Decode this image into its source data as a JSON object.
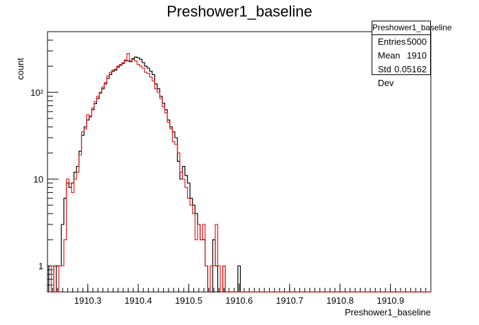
{
  "chart_data": {
    "type": "histogram",
    "title": "Preshower1_baseline",
    "xlabel": "Preshower1_baseline",
    "ylabel": "count",
    "xlim": [
      1910.22,
      1910.98
    ],
    "ylim": [
      0.5,
      500
    ],
    "yscale": "log",
    "grid": false,
    "x_ticks": [
      "1910.3",
      "1910.4",
      "1910.5",
      "1910.6",
      "1910.7",
      "1910.8",
      "1910.9"
    ],
    "x_tick_values": [
      1910.3,
      1910.4,
      1910.5,
      1910.6,
      1910.7,
      1910.8,
      1910.9
    ],
    "y_ticks": [
      "1",
      "10",
      "10²"
    ],
    "y_tick_values": [
      1,
      10,
      100
    ],
    "bin_width": 0.005,
    "series": [
      {
        "color": "#000000",
        "x": [
          1910.225,
          1910.23,
          1910.235,
          1910.24,
          1910.245,
          1910.25,
          1910.255,
          1910.26,
          1910.265,
          1910.27,
          1910.275,
          1910.28,
          1910.285,
          1910.29,
          1910.295,
          1910.3,
          1910.305,
          1910.31,
          1910.315,
          1910.32,
          1910.325,
          1910.33,
          1910.335,
          1910.34,
          1910.345,
          1910.35,
          1910.355,
          1910.36,
          1910.365,
          1910.37,
          1910.375,
          1910.38,
          1910.385,
          1910.39,
          1910.395,
          1910.4,
          1910.405,
          1910.41,
          1910.415,
          1910.42,
          1910.425,
          1910.43,
          1910.435,
          1910.44,
          1910.445,
          1910.45,
          1910.455,
          1910.46,
          1910.465,
          1910.47,
          1910.475,
          1910.48,
          1910.485,
          1910.49,
          1910.495,
          1910.5,
          1910.505,
          1910.51,
          1910.515,
          1910.52,
          1910.525,
          1910.53,
          1910.535,
          1910.54,
          1910.545,
          1910.55,
          1910.555,
          1910.56,
          1910.565,
          1910.57,
          1910.575,
          1910.58,
          1910.585,
          1910.59,
          1910.595,
          1910.6,
          1910.605
        ],
        "values": [
          1,
          1,
          0,
          1,
          1,
          3,
          6,
          9,
          8,
          9,
          12,
          14,
          21,
          32,
          40,
          48,
          53,
          63,
          74,
          85,
          98,
          110,
          125,
          145,
          160,
          175,
          180,
          195,
          205,
          215,
          235,
          230,
          225,
          245,
          255,
          250,
          240,
          220,
          200,
          190,
          175,
          160,
          125,
          110,
          90,
          75,
          63,
          48,
          40,
          35,
          30,
          16,
          10,
          14,
          11,
          9,
          6,
          5,
          4,
          3,
          2,
          2,
          1,
          0,
          0,
          2,
          1,
          0,
          0,
          1,
          0,
          0,
          0,
          0,
          0,
          1,
          0
        ],
        "bin_values_note": ""
      },
      {
        "color": "#e31a1c",
        "x": [
          1910.225,
          1910.23,
          1910.235,
          1910.24,
          1910.245,
          1910.25,
          1910.255,
          1910.26,
          1910.265,
          1910.27,
          1910.275,
          1910.28,
          1910.285,
          1910.29,
          1910.295,
          1910.3,
          1910.305,
          1910.31,
          1910.315,
          1910.32,
          1910.325,
          1910.33,
          1910.335,
          1910.34,
          1910.345,
          1910.35,
          1910.355,
          1910.36,
          1910.365,
          1910.37,
          1910.375,
          1910.38,
          1910.385,
          1910.39,
          1910.395,
          1910.4,
          1910.405,
          1910.41,
          1910.415,
          1910.42,
          1910.425,
          1910.43,
          1910.435,
          1910.44,
          1910.445,
          1910.45,
          1910.455,
          1910.46,
          1910.465,
          1910.47,
          1910.475,
          1910.48,
          1910.485,
          1910.49,
          1910.495,
          1910.5,
          1910.505,
          1910.51,
          1910.515,
          1910.52,
          1910.525,
          1910.53,
          1910.535,
          1910.54,
          1910.545,
          1910.55,
          1910.555,
          1910.56,
          1910.565,
          1910.57,
          1910.575,
          1910.58,
          1910.585,
          1910.59,
          1910.595
        ],
        "values": [
          0,
          1,
          0,
          0,
          1,
          1,
          2,
          10,
          9,
          7,
          10,
          12,
          19,
          35,
          38,
          55,
          52,
          66,
          78,
          90,
          100,
          115,
          130,
          155,
          170,
          180,
          185,
          200,
          210,
          220,
          230,
          280,
          235,
          240,
          230,
          210,
          200,
          190,
          170,
          165,
          150,
          135,
          110,
          100,
          85,
          68,
          58,
          45,
          38,
          27,
          25,
          20,
          12,
          10,
          8,
          6,
          5,
          4,
          2,
          3,
          2,
          3,
          1,
          0,
          1,
          1,
          3,
          1,
          0,
          1,
          0,
          0,
          0,
          0,
          0
        ]
      }
    ],
    "stats": {
      "title": "Preshower1_baseline",
      "rows": [
        {
          "label": "Entries",
          "value": "5000"
        },
        {
          "label": "Mean",
          "value": "1910"
        },
        {
          "label": "Std Dev",
          "value": "0.05162"
        }
      ]
    }
  }
}
